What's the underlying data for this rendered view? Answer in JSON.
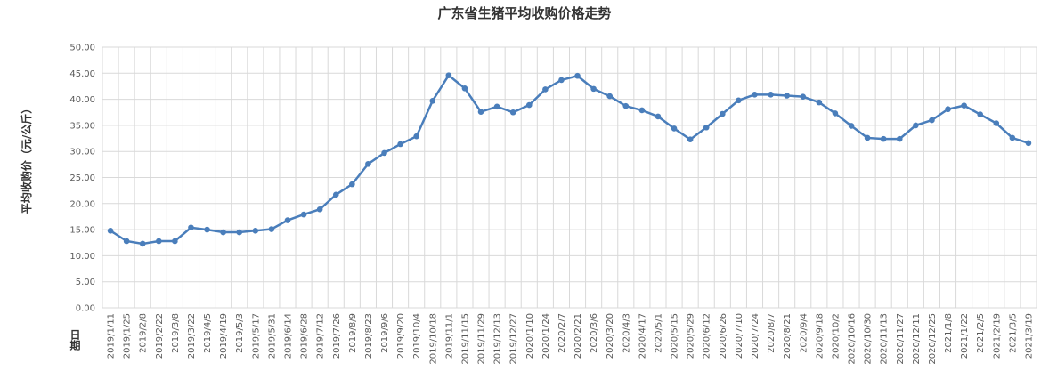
{
  "chart_data": {
    "type": "line",
    "title": "广东省生猪平均收购价格走势",
    "y_label": "平均收购价（元/公斤）",
    "x_label": "日期",
    "categories": [
      "2019/1/11",
      "2019/1/25",
      "2019/2/8",
      "2019/2/22",
      "2019/3/8",
      "2019/3/22",
      "2019/4/5",
      "2019/4/19",
      "2019/5/3",
      "2019/5/17",
      "2019/5/31",
      "2019/6/14",
      "2019/6/28",
      "2019/7/12",
      "2019/7/26",
      "2019/8/9",
      "2019/8/23",
      "2019/9/6",
      "2019/9/20",
      "2019/10/4",
      "2019/10/18",
      "2019/11/1",
      "2019/11/15",
      "2019/11/29",
      "2019/12/13",
      "2019/12/27",
      "2020/1/10",
      "2020/1/24",
      "2020/2/7",
      "2020/2/21",
      "2020/3/6",
      "2020/3/20",
      "2020/4/3",
      "2020/4/17",
      "2020/5/1",
      "2020/5/15",
      "2020/5/29",
      "2020/6/12",
      "2020/6/26",
      "2020/7/10",
      "2020/7/24",
      "2020/8/7",
      "2020/8/21",
      "2020/9/4",
      "2020/9/18",
      "2020/10/2",
      "2020/10/16",
      "2020/10/30",
      "2020/11/13",
      "2020/11/27",
      "2020/12/11",
      "2020/12/25",
      "2021/1/8",
      "2021/1/22",
      "2021/2/5",
      "2021/2/19",
      "2021/3/5",
      "2021/3/19"
    ],
    "values": [
      14.8,
      12.8,
      12.3,
      12.8,
      12.8,
      15.4,
      15.0,
      14.5,
      14.5,
      14.8,
      15.1,
      16.8,
      17.9,
      18.9,
      21.7,
      23.7,
      27.6,
      29.7,
      31.4,
      32.9,
      39.7,
      44.6,
      42.1,
      37.6,
      38.6,
      37.5,
      38.9,
      41.9,
      43.7,
      44.5,
      42.0,
      40.6,
      38.7,
      37.9,
      36.7,
      34.4,
      32.3,
      34.6,
      37.2,
      39.8,
      40.9,
      40.9,
      40.7,
      40.5,
      39.4,
      37.3,
      34.9,
      32.6,
      32.4,
      32.4,
      35.0,
      36.0,
      38.1,
      38.8,
      37.1,
      35.4,
      32.6,
      31.6
    ],
    "color": "#4a7ebb",
    "ylim": [
      0,
      50
    ],
    "yticks": [
      {
        "value": 0,
        "label": "0.00"
      },
      {
        "value": 5,
        "label": "5.00"
      },
      {
        "value": 10,
        "label": "10.00"
      },
      {
        "value": 15,
        "label": "15.00"
      },
      {
        "value": 20,
        "label": "20.00"
      },
      {
        "value": 25,
        "label": "25.00"
      },
      {
        "value": 30,
        "label": "30.00"
      },
      {
        "value": 35,
        "label": "35.00"
      },
      {
        "value": 40,
        "label": "40.00"
      },
      {
        "value": 45,
        "label": "45.00"
      },
      {
        "value": 50,
        "label": "50.00"
      }
    ],
    "grid": true
  }
}
